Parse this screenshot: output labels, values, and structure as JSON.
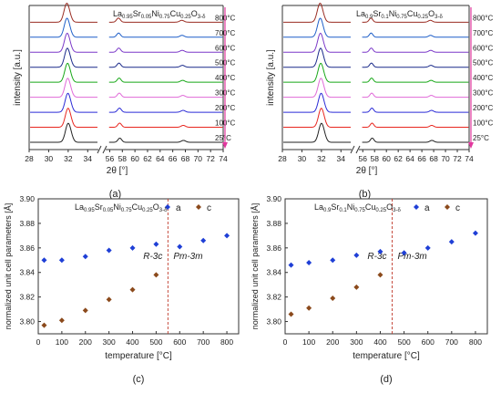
{
  "chart_data": [
    {
      "panel": "(a)",
      "type": "line",
      "subtype": "xrd-stacked",
      "formula": {
        "pre": "La",
        "s1": "0.95",
        "m1": "Sr",
        "s2": "0.05",
        "m2": "Ni",
        "s3": "0.75",
        "m3": "Cu",
        "s4": "0.25",
        "m4": "O",
        "s5": "3-δ"
      },
      "xlabel": "2θ [°]",
      "ylabel": "intensity [a.u.]",
      "xticks": [
        "28",
        "30",
        "32",
        "34",
        "56",
        "58",
        "60",
        "62",
        "64",
        "66",
        "68",
        "70",
        "72",
        "74"
      ],
      "break_marker": "//",
      "x_ranges": [
        [
          28,
          35
        ],
        [
          55.5,
          74
        ]
      ],
      "series": [
        {
          "name": "25°C",
          "color": "#222222"
        },
        {
          "name": "100°C",
          "color": "#e8261f"
        },
        {
          "name": "200°C",
          "color": "#2b2bd6"
        },
        {
          "name": "300°C",
          "color": "#e06ad8"
        },
        {
          "name": "400°C",
          "color": "#18a818"
        },
        {
          "name": "500°C",
          "color": "#1a2a8a"
        },
        {
          "name": "600°C",
          "color": "#7a38c8"
        },
        {
          "name": "700°C",
          "color": "#1f5fc8"
        },
        {
          "name": "800°C",
          "color": "#9a2c22"
        }
      ],
      "peaks": [
        32.0,
        57.6,
        67.7
      ],
      "arrow_color": "#e2389e"
    },
    {
      "panel": "(b)",
      "type": "line",
      "subtype": "xrd-stacked",
      "formula": {
        "pre": "La",
        "s1": "0.9",
        "m1": "Sr",
        "s2": "0.1",
        "m2": "Ni",
        "s3": "0.75",
        "m3": "Cu",
        "s4": "0.25",
        "m4": "O",
        "s5": "3-δ"
      },
      "xlabel": "2θ [°]",
      "ylabel": "intensity [a.u.]",
      "xticks": [
        "28",
        "30",
        "32",
        "34",
        "56",
        "58",
        "60",
        "62",
        "64",
        "66",
        "68",
        "70",
        "72",
        "74"
      ],
      "break_marker": "//",
      "x_ranges": [
        [
          28,
          35
        ],
        [
          55.5,
          74
        ]
      ],
      "series": [
        {
          "name": "25°C",
          "color": "#222222"
        },
        {
          "name": "100°C",
          "color": "#e8261f"
        },
        {
          "name": "200°C",
          "color": "#2b2bd6"
        },
        {
          "name": "300°C",
          "color": "#e06ad8"
        },
        {
          "name": "400°C",
          "color": "#18a818"
        },
        {
          "name": "500°C",
          "color": "#1a2a8a"
        },
        {
          "name": "600°C",
          "color": "#7a38c8"
        },
        {
          "name": "700°C",
          "color": "#1f5fc8"
        },
        {
          "name": "800°C",
          "color": "#9a2c22"
        }
      ],
      "peaks": [
        32.0,
        57.6,
        67.7
      ],
      "arrow_color": "#e2389e"
    },
    {
      "panel": "(c)",
      "type": "scatter",
      "formula": {
        "pre": "La",
        "s1": "0.95",
        "m1": "Sr",
        "s2": "0.05",
        "m2": "Ni",
        "s3": "0.75",
        "m3": "Cu",
        "s4": "0.25",
        "m4": "O",
        "s5": "3-δ"
      },
      "xlabel": "temperature [°C]",
      "ylabel": "normalized unit cell parameters [Å]",
      "xlim": [
        0,
        850
      ],
      "ylim": [
        3.79,
        3.9
      ],
      "xticks": [
        "0",
        "100",
        "200",
        "300",
        "400",
        "500",
        "600",
        "700",
        "800"
      ],
      "yticks": [
        "3.80",
        "3.82",
        "3.84",
        "3.86",
        "3.88",
        "3.90"
      ],
      "legend": [
        {
          "name": "a",
          "color": "#1f3fd6"
        },
        {
          "name": "c",
          "color": "#8b4a1c"
        }
      ],
      "phase_boundary": 550,
      "phase_labels": [
        "R-3c",
        "Pm-3m"
      ],
      "series": [
        {
          "name": "a",
          "color": "#1f3fd6",
          "x": [
            25,
            100,
            200,
            300,
            400,
            500,
            600,
            700,
            800
          ],
          "y": [
            3.85,
            3.85,
            3.853,
            3.858,
            3.86,
            3.863,
            3.861,
            3.866,
            3.87
          ]
        },
        {
          "name": "c",
          "color": "#8b4a1c",
          "x": [
            25,
            100,
            200,
            300,
            400,
            500
          ],
          "y": [
            3.797,
            3.801,
            3.809,
            3.818,
            3.826,
            3.838
          ]
        }
      ]
    },
    {
      "panel": "(d)",
      "type": "scatter",
      "formula": {
        "pre": "La",
        "s1": "0.9",
        "m1": "Sr",
        "s2": "0.1",
        "m2": "Ni",
        "s3": "0.75",
        "m3": "Cu",
        "s4": "0.25",
        "m4": "O",
        "s5": "3-δ"
      },
      "xlabel": "temperature [°C]",
      "ylabel": "normalized unit cell parameters [Å]",
      "xlim": [
        0,
        850
      ],
      "ylim": [
        3.79,
        3.9
      ],
      "xticks": [
        "0",
        "100",
        "200",
        "300",
        "400",
        "500",
        "600",
        "700",
        "800"
      ],
      "yticks": [
        "3.80",
        "3.82",
        "3.84",
        "3.86",
        "3.88",
        "3.90"
      ],
      "legend": [
        {
          "name": "a",
          "color": "#1f3fd6"
        },
        {
          "name": "c",
          "color": "#8b4a1c"
        }
      ],
      "phase_boundary": 450,
      "phase_labels": [
        "R-3c",
        "Pm-3m"
      ],
      "series": [
        {
          "name": "a",
          "color": "#1f3fd6",
          "x": [
            25,
            100,
            200,
            300,
            400,
            500,
            600,
            700,
            800
          ],
          "y": [
            3.846,
            3.848,
            3.85,
            3.854,
            3.857,
            3.856,
            3.86,
            3.865,
            3.872
          ]
        },
        {
          "name": "c",
          "color": "#8b4a1c",
          "x": [
            25,
            100,
            200,
            300,
            400
          ],
          "y": [
            3.806,
            3.811,
            3.819,
            3.828,
            3.838
          ]
        }
      ]
    }
  ]
}
